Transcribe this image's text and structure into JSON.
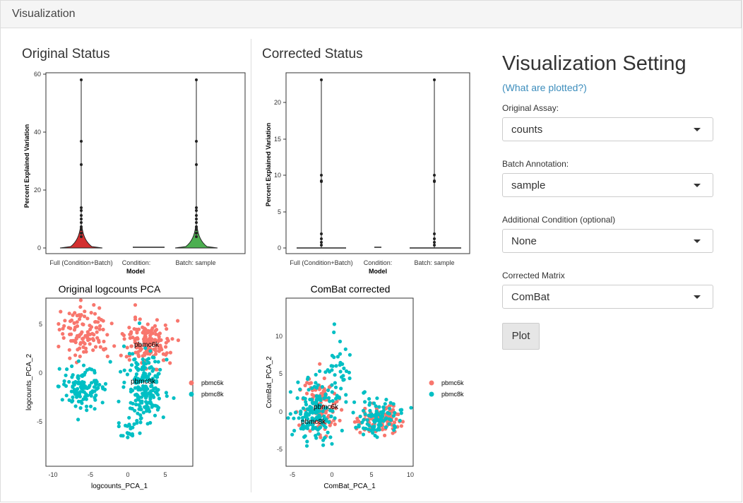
{
  "header": {
    "title": "Visualization"
  },
  "left": {
    "title": "Original Status",
    "violin": {
      "ylabel": "Percent Explained Variation",
      "xlabel": "Model",
      "yticks": [
        "0",
        "20",
        "40",
        "60"
      ],
      "categories": [
        "Full (Condition+Batch)",
        "Condition:",
        "Batch: sample"
      ],
      "violin_colors": [
        "#e41a1c",
        "#7f7f7f",
        "#4daf4a"
      ]
    },
    "pca": {
      "title": "Original logcounts PCA",
      "xlabel": "logcounts_PCA_1",
      "ylabel": "logcounts_PCA_2",
      "xticks": [
        "-10",
        "-5",
        "0",
        "5"
      ],
      "yticks": [
        "5",
        "0",
        "-5"
      ],
      "labels": [
        "pbmc6k",
        "pbmc8k"
      ],
      "legend": [
        "pbmc6k",
        "pbmc8k"
      ]
    }
  },
  "right": {
    "title": "Corrected Status",
    "violin": {
      "ylabel": "Percent Explained Variation",
      "xlabel": "Model",
      "yticks": [
        "0",
        "5",
        "10",
        "15",
        "20"
      ],
      "categories": [
        "Full (Condition+Batch)",
        "Condition:",
        "Batch: sample"
      ]
    },
    "pca": {
      "title": "ComBat corrected",
      "xlabel": "ComBat_PCA_1",
      "ylabel": "ComBat_PCA_2",
      "xticks": [
        "-5",
        "0",
        "5",
        "10"
      ],
      "yticks": [
        "10",
        "5",
        "0",
        "-5"
      ],
      "labels": [
        "pbmc6k",
        "pbmc8k"
      ],
      "legend": [
        "pbmc6k",
        "pbmc8k"
      ]
    }
  },
  "settings": {
    "title": "Visualization Setting",
    "link": "(What are plotted?)",
    "fields": [
      {
        "label": "Original Assay:",
        "value": "counts"
      },
      {
        "label": "Batch Annotation:",
        "value": "sample"
      },
      {
        "label": "Additional Condition (optional)",
        "value": "None"
      },
      {
        "label": "Corrected Matrix",
        "value": "ComBat"
      }
    ],
    "button": "Plot"
  },
  "colors": {
    "pbmc6k": "#F8766D",
    "pbmc8k": "#00BFC4",
    "link": "#3c8dbc"
  }
}
